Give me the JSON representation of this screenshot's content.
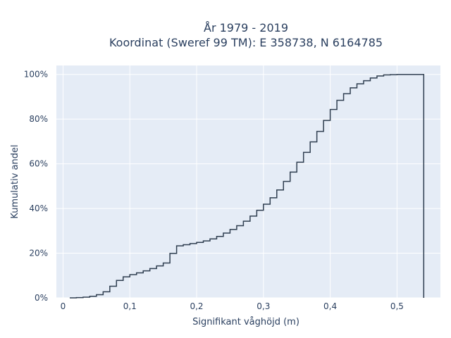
{
  "chart_data": {
    "type": "line",
    "title_line1": "År 1979 - 2019",
    "title_line2": "Koordinat (Sweref 99 TM): E 358738, N 6164785",
    "xlabel": "Signifikant våghöjd (m)",
    "ylabel": "Kumulativ andel",
    "xlim": [
      -0.01,
      0.565
    ],
    "ylim": [
      0,
      1.04
    ],
    "grid": true,
    "x_ticks": [
      {
        "value": 0,
        "label": "0"
      },
      {
        "value": 0.1,
        "label": "0,1"
      },
      {
        "value": 0.2,
        "label": "0,2"
      },
      {
        "value": 0.3,
        "label": "0,3"
      },
      {
        "value": 0.4,
        "label": "0,4"
      },
      {
        "value": 0.5,
        "label": "0,5"
      }
    ],
    "y_ticks": [
      {
        "value": 0,
        "label": "0%"
      },
      {
        "value": 0.2,
        "label": "20%"
      },
      {
        "value": 0.4,
        "label": "40%"
      },
      {
        "value": 0.6,
        "label": "60%"
      },
      {
        "value": 0.8,
        "label": "80%"
      },
      {
        "value": 1.0,
        "label": "100%"
      }
    ],
    "line_color": "#2f3e50",
    "series": [
      {
        "step": "hv",
        "x": [
          0.01,
          0.02,
          0.03,
          0.04,
          0.05,
          0.06,
          0.07,
          0.08,
          0.09,
          0.1,
          0.11,
          0.12,
          0.13,
          0.14,
          0.15,
          0.16,
          0.17,
          0.18,
          0.19,
          0.2,
          0.21,
          0.22,
          0.23,
          0.24,
          0.25,
          0.26,
          0.27,
          0.28,
          0.29,
          0.3,
          0.31,
          0.32,
          0.33,
          0.34,
          0.35,
          0.36,
          0.37,
          0.38,
          0.39,
          0.4,
          0.41,
          0.42,
          0.43,
          0.44,
          0.45,
          0.46,
          0.47,
          0.48,
          0.49,
          0.5,
          0.51,
          0.52,
          0.53,
          0.54,
          0.54
        ],
        "y": [
          0.0,
          0.001,
          0.003,
          0.007,
          0.014,
          0.027,
          0.052,
          0.078,
          0.094,
          0.104,
          0.112,
          0.121,
          0.131,
          0.143,
          0.156,
          0.199,
          0.233,
          0.238,
          0.243,
          0.248,
          0.255,
          0.264,
          0.275,
          0.29,
          0.306,
          0.323,
          0.343,
          0.366,
          0.392,
          0.419,
          0.448,
          0.483,
          0.521,
          0.563,
          0.607,
          0.651,
          0.698,
          0.745,
          0.794,
          0.843,
          0.884,
          0.914,
          0.94,
          0.958,
          0.972,
          0.984,
          0.993,
          0.998,
          0.999,
          1.0,
          1.0,
          1.0,
          1.0,
          1.0,
          0.0
        ]
      }
    ]
  }
}
